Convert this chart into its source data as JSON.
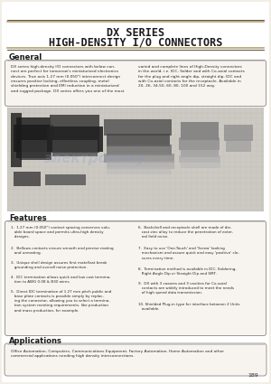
{
  "title_line1": "DX SERIES",
  "title_line2": "HIGH-DENSITY I/O CONNECTORS",
  "page_bg": "#f2ede6",
  "white": "#ffffff",
  "section_general_title": "General",
  "gen_left": "DX series high-density I/O connectors with below con-\nnect are perfect for tomorrow's miniaturized electronics\ndevices. True axis 1.27 mm (0.050\") interconnect design\nensures positive locking, effortless coupling, metal\nshielding protection and EMI reduction in a miniaturized\nand rugged package. DX series offers you one of the most",
  "gen_right": "varied and complete lines of High-Density connectors\nin the world, i.e. IDC, Solder and with Co-axial contacts\nfor the plug and right angle dip, straight dip, IDC and\nwith Co-axial contacts for the receptacle. Available in\n20, 26, 34,50, 60, 80, 100 and 152 way.",
  "section_features_title": "Features",
  "feat_left": [
    "1.  1.27 mm (0.050\") contact spacing conserves valu-\n   able board space and permits ultra-high density\n   designs.",
    "2.  Bellows contacts ensure smooth and precise mating\n   and unmating.",
    "3.  Unique shell design assures first mate/last break\n   grounding and overall noise protection.",
    "4.  IDC termination allows quick and low cost termina-\n   tion to AWG 0.08 & B30 wires.",
    "5.  Direct IDC termination of 1.27 mm pitch public and\n   base plate contacts is possible simply by replac-\n   ing the connector, allowing you to select a termina-\n   tion system meeting requirements. like production\n   and mass production, for example."
  ],
  "feat_right": [
    "6.  Backshell and receptacle shell are made of die-\n   cast zinc alloy to reduce the penetration of exter-\n   nal field noise.",
    "7.  Easy to use 'One-Touch' and 'Screw' looking\n   mechanism and assure quick and easy 'positive' clo-\n   sures every time.",
    "8.  Termination method is available in IDC, Soldering,\n   Right Angle Dip or Straight Dip and SMT.",
    "9.  DX with 3 coaxies and 3 cavities for Co-axial\n   contacts are widely introduced to meet the needs\n   of high speed data transmission.",
    "10. Shielded Plug-in type for interface between 2 Units\n   available."
  ],
  "section_applications_title": "Applications",
  "applications_text": "Office Automation, Computers, Communications Equipment, Factory Automation, Home Automation and other\ncommercial applications needing high density interconnections.",
  "page_number": "189",
  "title_color": "#1a1a1a",
  "text_color": "#2a2a2a",
  "line_color_gold": "#b8a070",
  "line_color_dark": "#333322",
  "box_edge": "#888880",
  "box_face": "#f7f4ef",
  "section_bg": "#e8e3dc"
}
